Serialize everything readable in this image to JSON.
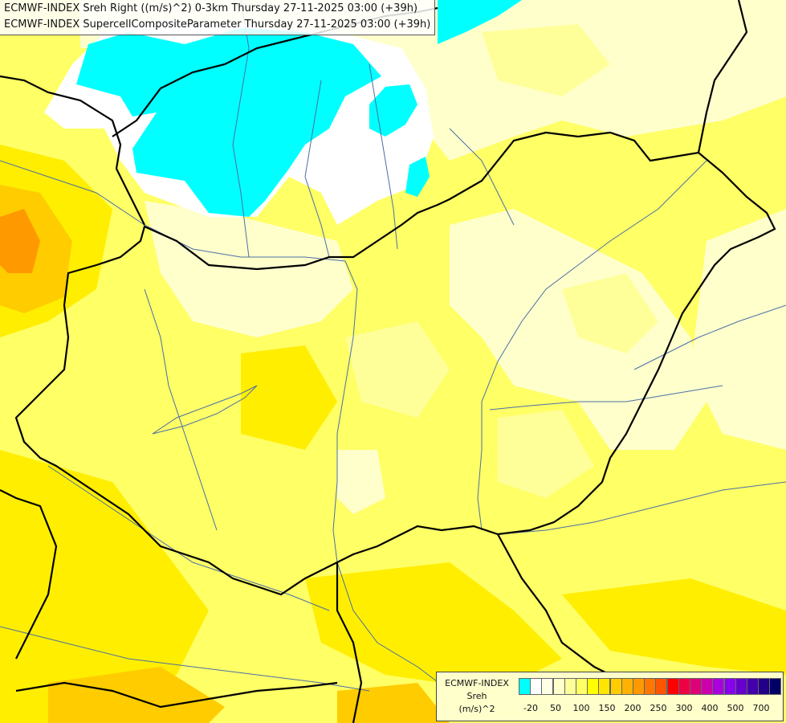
{
  "title": {
    "line1": "ECMWF-INDEX Sreh Right ((m/s)^2) 0-3km Thursday 27-11-2025 03:00 (+39h)",
    "line2": "ECMWF-INDEX SupercellCompositeParameter Thursday 27-11-2025 03:00 (+39h)"
  },
  "legend": {
    "model": "ECMWF-INDEX",
    "variable": "Sreh",
    "unit": "(m/s)^2",
    "colors": [
      "#00ffff",
      "#ffffff",
      "#ffffe6",
      "#ffffcc",
      "#ffff99",
      "#ffff66",
      "#ffff00",
      "#ffe600",
      "#ffcc00",
      "#ffb300",
      "#ff9900",
      "#ff7700",
      "#ff5500",
      "#ff0000",
      "#ee0044",
      "#dd0077",
      "#cc00aa",
      "#aa00dd",
      "#8800ee",
      "#6600cc",
      "#4400aa",
      "#220088",
      "#000066"
    ],
    "ticks": [
      "-20",
      "50",
      "100",
      "150",
      "200",
      "250",
      "300",
      "400",
      "500",
      "700"
    ]
  },
  "map": {
    "palette": {
      "cyan": "#00ffff",
      "white": "#ffffff",
      "pale": "#ffffcc",
      "light": "#ffff99",
      "yellow": "#ffff66",
      "gold": "#ffee00",
      "orange": "#ffcc00",
      "dark_orange": "#ff9900",
      "border": "#000000",
      "river": "#4a6fa5"
    }
  }
}
